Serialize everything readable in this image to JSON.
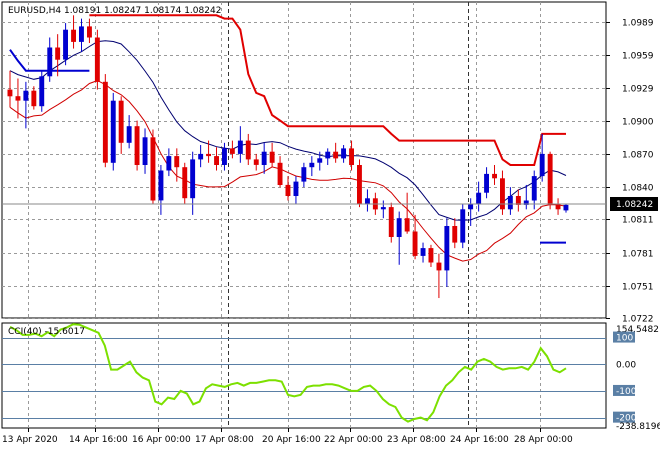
{
  "header": {
    "text": "EURUSD,H4  1.08191 1.08247 1.08174 1.08242"
  },
  "cci_header": {
    "text": "CCI(40) -15.6017"
  },
  "colors": {
    "bull": "#0000d0",
    "bear": "#e00000",
    "band_upper": "#000070",
    "band_lower": "#d00000",
    "stop_red": "#e00000",
    "stop_blue": "#0000d0",
    "cci_line": "#7ce000",
    "grid": "#9a9a9a",
    "ref_line": "#5a7fa5"
  },
  "chart_data": [
    {
      "type": "candlestick",
      "title": "EURUSD,H4",
      "ohlc_header": [
        1.08191,
        1.08247,
        1.08174,
        1.08242
      ],
      "price_axis": [
        1.0989,
        1.0959,
        1.0929,
        1.09,
        1.087,
        1.084,
        1.0811,
        1.0781,
        1.0751,
        1.0722
      ],
      "current_price": "1.08242",
      "ylim": [
        1.0722,
        1.1007
      ],
      "time_axis": [
        "13 Apr 2020",
        "14 Apr 16:00",
        "16 Apr 00:00",
        "17 Apr 08:00",
        "20 Apr 16:00",
        "22 Apr 00:00",
        "23 Apr 08:00",
        "24 Apr 16:00",
        "28 Apr 00:00"
      ],
      "candles": [
        [
          1.0928,
          1.0945,
          1.0912,
          1.0922
        ],
        [
          1.0922,
          1.0938,
          1.0902,
          1.0918
        ],
        [
          1.0918,
          1.0935,
          1.0893,
          1.0927
        ],
        [
          1.0927,
          1.0931,
          1.091,
          1.0913
        ],
        [
          1.0913,
          1.0945,
          1.0908,
          1.094
        ],
        [
          1.094,
          1.0975,
          1.0935,
          1.0966
        ],
        [
          1.0966,
          1.0978,
          1.094,
          1.0955
        ],
        [
          1.0955,
          1.0988,
          1.095,
          1.0982
        ],
        [
          1.0982,
          1.0995,
          1.0965,
          1.0971
        ],
        [
          1.0971,
          1.0992,
          1.0962,
          1.0985
        ],
        [
          1.0985,
          1.0992,
          1.097,
          1.0975
        ],
        [
          1.0975,
          1.0982,
          1.0928,
          1.0935
        ],
        [
          1.0935,
          1.0942,
          1.0858,
          1.0862
        ],
        [
          1.0862,
          1.0925,
          1.0855,
          1.0918
        ],
        [
          1.0918,
          1.0922,
          1.087,
          1.088
        ],
        [
          1.088,
          1.0905,
          1.0875,
          1.0895
        ],
        [
          1.0895,
          1.09,
          1.0855,
          1.086
        ],
        [
          1.086,
          1.0893,
          1.0852,
          1.0885
        ],
        [
          1.0885,
          1.0892,
          1.0825,
          1.0828
        ],
        [
          1.0828,
          1.086,
          1.0815,
          1.0855
        ],
        [
          1.0855,
          1.0875,
          1.085,
          1.0868
        ],
        [
          1.0868,
          1.0875,
          1.0845,
          1.0858
        ],
        [
          1.0858,
          1.0862,
          1.0825,
          1.083
        ],
        [
          1.083,
          1.0872,
          1.0815,
          1.0865
        ],
        [
          1.0865,
          1.0878,
          1.0858,
          1.087
        ],
        [
          1.087,
          1.0882,
          1.0862,
          1.0868
        ],
        [
          1.0868,
          1.0876,
          1.0855,
          1.086
        ],
        [
          1.086,
          1.088,
          1.0855,
          1.0875
        ],
        [
          1.0875,
          1.0882,
          1.0866,
          1.087
        ],
        [
          1.087,
          1.0895,
          1.0862,
          1.0882
        ],
        [
          1.0882,
          1.0888,
          1.086,
          1.0865
        ],
        [
          1.0865,
          1.087,
          1.0855,
          1.086
        ],
        [
          1.086,
          1.088,
          1.0852,
          1.0872
        ],
        [
          1.0872,
          1.088,
          1.0858,
          1.0862
        ],
        [
          1.0862,
          1.0868,
          1.084,
          1.0842
        ],
        [
          1.0842,
          1.085,
          1.0828,
          1.0832
        ],
        [
          1.0832,
          1.085,
          1.0825,
          1.0845
        ],
        [
          1.0845,
          1.0862,
          1.084,
          1.0858
        ],
        [
          1.0858,
          1.0868,
          1.085,
          1.0862
        ],
        [
          1.0862,
          1.0872,
          1.0855,
          1.0866
        ],
        [
          1.0866,
          1.0875,
          1.086,
          1.0872
        ],
        [
          1.0872,
          1.088,
          1.0862,
          1.0866
        ],
        [
          1.0866,
          1.0878,
          1.0862,
          1.0875
        ],
        [
          1.0875,
          1.0882,
          1.0855,
          1.086
        ],
        [
          1.086,
          1.0865,
          1.0822,
          1.0825
        ],
        [
          1.0825,
          1.0838,
          1.0818,
          1.083
        ],
        [
          1.083,
          1.0835,
          1.0815,
          1.082
        ],
        [
          1.082,
          1.0828,
          1.0812,
          1.0822
        ],
        [
          1.0822,
          1.0826,
          1.079,
          1.0795
        ],
        [
          1.0795,
          1.0818,
          1.077,
          1.0812
        ],
        [
          1.0812,
          1.0835,
          1.0798,
          1.08
        ],
        [
          1.08,
          1.0815,
          1.0775,
          1.0778
        ],
        [
          1.0778,
          1.079,
          1.0772,
          1.0785
        ],
        [
          1.0785,
          1.0788,
          1.0768,
          1.0772
        ],
        [
          1.0772,
          1.078,
          1.074,
          1.0765
        ],
        [
          1.0765,
          1.0812,
          1.075,
          1.0805
        ],
        [
          1.0805,
          1.0812,
          1.0785,
          1.079
        ],
        [
          1.079,
          1.0825,
          1.0785,
          1.082
        ],
        [
          1.082,
          1.083,
          1.0805,
          1.0825
        ],
        [
          1.0825,
          1.0845,
          1.0818,
          1.0835
        ],
        [
          1.0835,
          1.0858,
          1.083,
          1.0852
        ],
        [
          1.0852,
          1.086,
          1.0842,
          1.0848
        ],
        [
          1.0848,
          1.0855,
          1.0815,
          1.082
        ],
        [
          1.082,
          1.084,
          1.0815,
          1.0832
        ],
        [
          1.0832,
          1.0838,
          1.0818,
          1.0824
        ],
        [
          1.0824,
          1.0842,
          1.082,
          1.0828
        ],
        [
          1.0828,
          1.0855,
          1.082,
          1.085
        ],
        [
          1.085,
          1.0888,
          1.0845,
          1.087
        ],
        [
          1.087,
          1.0872,
          1.082,
          1.0825
        ],
        [
          1.0825,
          1.083,
          1.0815,
          1.082
        ],
        [
          1.0819,
          1.0825,
          1.0817,
          1.0824
        ]
      ]
    },
    {
      "type": "line",
      "title": "CCI(40)",
      "current_value": -15.6017,
      "axis_labels": [
        "154.5482",
        "100",
        "0.00",
        "-100",
        "-200",
        "-238.8196"
      ],
      "ylim": [
        -238.8196,
        154.5482
      ],
      "levels": [
        100,
        0,
        -100,
        -200
      ],
      "values": [
        140,
        128,
        110,
        110,
        115,
        105,
        120,
        105,
        130,
        138,
        150,
        148,
        138,
        128,
        118,
        70,
        -20,
        -20,
        -5,
        10,
        -30,
        -50,
        -60,
        -140,
        -150,
        -125,
        -130,
        -100,
        -110,
        -150,
        -140,
        -90,
        -75,
        -80,
        -85,
        -75,
        -70,
        -80,
        -70,
        -70,
        -65,
        -60,
        -60,
        -65,
        -115,
        -120,
        -115,
        -85,
        -80,
        -80,
        -75,
        -75,
        -80,
        -90,
        -100,
        -100,
        -85,
        -80,
        -100,
        -130,
        -150,
        -160,
        -200,
        -215,
        -205,
        -200,
        -210,
        -180,
        -120,
        -80,
        -60,
        -30,
        -10,
        -20,
        10,
        20,
        10,
        -10,
        -20,
        -15,
        -15,
        -10,
        -20,
        10,
        60,
        30,
        -20,
        -30,
        -15
      ]
    }
  ]
}
